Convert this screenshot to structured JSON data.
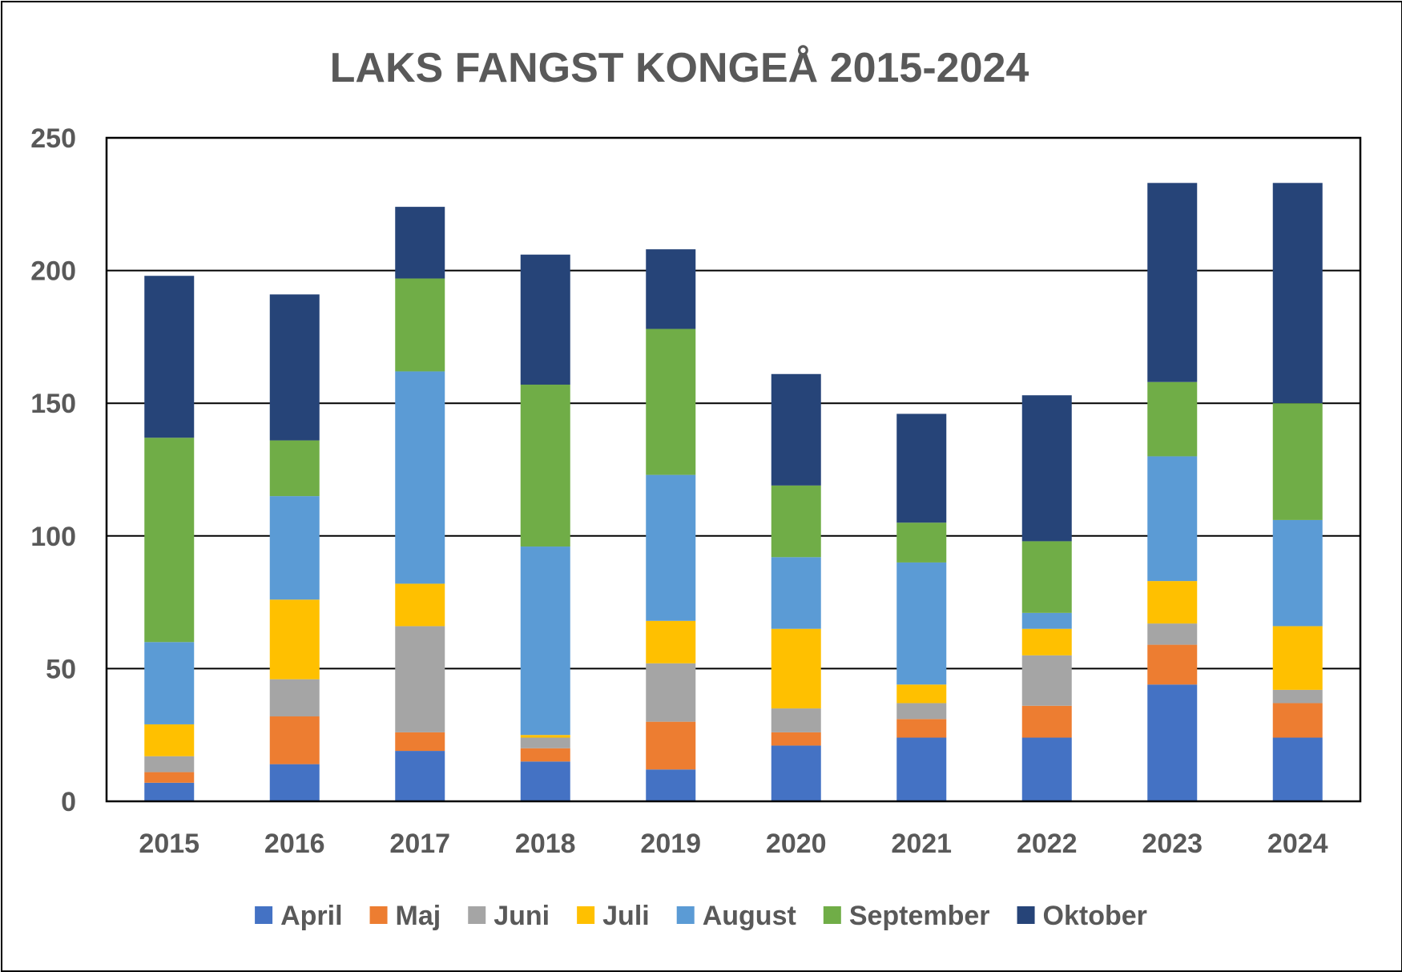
{
  "chart_data": {
    "type": "bar",
    "stacked": true,
    "title": "LAKS FANGST KONGEÅ 2015-2024",
    "xlabel": "",
    "ylabel": "",
    "ylim": [
      0,
      250
    ],
    "yticks": [
      0,
      50,
      100,
      150,
      200,
      250
    ],
    "grid": true,
    "legend_position": "bottom",
    "categories": [
      "2015",
      "2016",
      "2017",
      "2018",
      "2019",
      "2020",
      "2021",
      "2022",
      "2023",
      "2024"
    ],
    "series": [
      {
        "name": "April",
        "color": "#4472C4",
        "values": [
          7,
          14,
          19,
          15,
          12,
          21,
          24,
          24,
          44,
          24
        ]
      },
      {
        "name": "Maj",
        "color": "#ED7D31",
        "values": [
          4,
          18,
          7,
          5,
          18,
          5,
          7,
          12,
          15,
          13
        ]
      },
      {
        "name": "Juni",
        "color": "#A5A5A5",
        "values": [
          6,
          14,
          40,
          4,
          22,
          9,
          6,
          19,
          8,
          5
        ]
      },
      {
        "name": "Juli",
        "color": "#FFC000",
        "values": [
          12,
          30,
          16,
          1,
          16,
          30,
          7,
          10,
          16,
          24
        ]
      },
      {
        "name": "August",
        "color": "#5B9BD5",
        "values": [
          31,
          39,
          80,
          71,
          55,
          27,
          46,
          6,
          47,
          40
        ]
      },
      {
        "name": "September",
        "color": "#70AD47",
        "values": [
          77,
          21,
          35,
          61,
          55,
          27,
          15,
          27,
          28,
          44
        ]
      },
      {
        "name": "Oktober",
        "color": "#264478",
        "values": [
          61,
          55,
          27,
          49,
          30,
          42,
          41,
          55,
          75,
          83
        ]
      }
    ]
  }
}
